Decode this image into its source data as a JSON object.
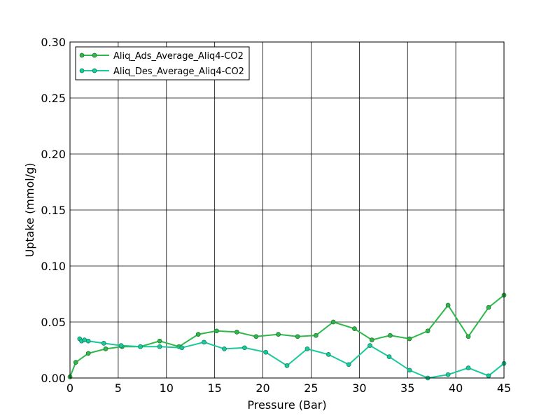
{
  "chart_data": {
    "type": "line",
    "xlabel": "Pressure (Bar)",
    "ylabel": "Uptake (mmol/g)",
    "xlim": [
      0,
      45
    ],
    "ylim": [
      0,
      0.3
    ],
    "x_ticks": [
      "0",
      "5",
      "10",
      "15",
      "20",
      "25",
      "30",
      "35",
      "40",
      "45"
    ],
    "y_ticks": [
      "0.00",
      "0.05",
      "0.10",
      "0.15",
      "0.20",
      "0.25",
      "0.30"
    ],
    "grid": true,
    "legend_position": "top-left",
    "series": [
      {
        "name": "Aliq_Ads_Average_Aliq4-CO2",
        "color": "#2eb84a",
        "x": [
          0.0,
          0.6,
          1.9,
          3.7,
          5.4,
          7.3,
          9.3,
          11.3,
          13.3,
          15.2,
          17.3,
          19.3,
          21.6,
          23.6,
          25.5,
          27.3,
          29.5,
          31.3,
          33.2,
          35.2,
          37.1,
          39.2,
          41.3,
          43.4,
          45.0
        ],
        "y": [
          0.001,
          0.014,
          0.022,
          0.026,
          0.028,
          0.028,
          0.033,
          0.028,
          0.039,
          0.042,
          0.041,
          0.037,
          0.039,
          0.037,
          0.038,
          0.05,
          0.044,
          0.034,
          0.038,
          0.035,
          0.042,
          0.065,
          0.037,
          0.063,
          0.074
        ]
      },
      {
        "name": "Aliq_Des_Average_Aliq4-CO2",
        "color": "#18c99a",
        "x": [
          1.0,
          1.2,
          1.5,
          1.9,
          3.5,
          5.3,
          7.3,
          9.3,
          11.6,
          13.9,
          16.0,
          18.1,
          20.3,
          22.5,
          24.6,
          26.8,
          28.9,
          31.1,
          33.1,
          35.2,
          37.1,
          39.2,
          41.3,
          43.4,
          45.0
        ],
        "y": [
          0.035,
          0.033,
          0.034,
          0.033,
          0.031,
          0.029,
          0.028,
          0.028,
          0.027,
          0.032,
          0.026,
          0.027,
          0.023,
          0.011,
          0.026,
          0.021,
          0.012,
          0.029,
          0.019,
          0.007,
          0.0,
          0.003,
          0.009,
          0.002,
          0.013
        ]
      }
    ]
  }
}
